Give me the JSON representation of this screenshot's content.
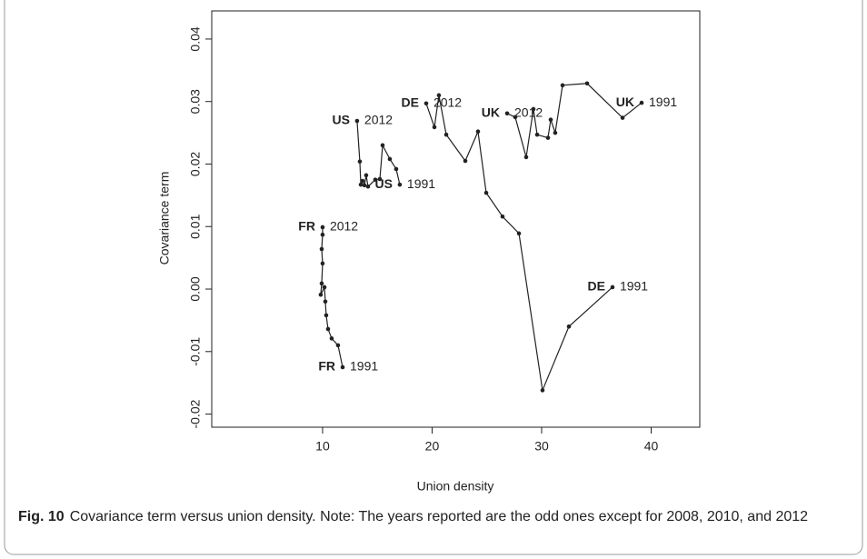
{
  "chart_data": {
    "type": "line",
    "x_label": "Union density",
    "y_label": "Covariance term",
    "caption_label": "Fig. 10",
    "caption": "Covariance term versus union density. Note: The years reported are the odd ones except for 2008, 2010, and 2012",
    "xlim": [
      -0.12,
      44.44
    ],
    "ylim": [
      -0.0221,
      0.0445
    ],
    "xticks": [
      10,
      20,
      30,
      40
    ],
    "yticks": [
      -0.02,
      -0.01,
      {
        "value": 0,
        "label": "0.00"
      },
      0.01,
      0.02,
      0.03,
      0.04
    ],
    "color": "#222222",
    "series": [
      {
        "name": "FR",
        "first_label": "2012",
        "last_label": "1991",
        "x": [
          10.0,
          10.0,
          9.92,
          10.0,
          9.92,
          9.83,
          10.17,
          10.25,
          10.33,
          10.5,
          10.83,
          11.41,
          11.83
        ],
        "y": [
          0.0099,
          0.0087,
          0.0064,
          0.0041,
          0.0009,
          -0.0009,
          0.0003,
          -0.002,
          -0.0042,
          -0.0064,
          -0.0079,
          -0.009,
          -0.0125
        ]
      },
      {
        "name": "US",
        "first_label": "2012",
        "last_label": "1991",
        "x": [
          13.15,
          13.4,
          13.49,
          13.65,
          13.82,
          13.98,
          14.15,
          14.81,
          15.23,
          15.48,
          16.14,
          16.72,
          17.05
        ],
        "y": [
          0.0269,
          0.0204,
          0.0167,
          0.0173,
          0.0166,
          0.0182,
          0.0164,
          0.0175,
          0.0176,
          0.023,
          0.0208,
          0.0192,
          0.0167
        ]
      },
      {
        "name": "DE",
        "first_label": "2012",
        "last_label": "1991",
        "x": [
          19.46,
          20.21,
          20.62,
          21.29,
          23.03,
          24.19,
          24.94,
          26.43,
          27.93,
          30.08,
          32.49,
          36.47
        ],
        "y": [
          0.0297,
          0.0259,
          0.031,
          0.0247,
          0.0205,
          0.0252,
          0.0154,
          0.0116,
          0.0089,
          -0.0162,
          -0.006,
          0.0003
        ]
      },
      {
        "name": "UK",
        "first_label": "2012",
        "last_label": "1991",
        "x": [
          26.85,
          27.59,
          28.59,
          29.25,
          29.59,
          30.58,
          30.83,
          31.24,
          31.91,
          34.15,
          37.39,
          39.13
        ],
        "y": [
          0.0281,
          0.0275,
          0.0211,
          0.0288,
          0.0247,
          0.0242,
          0.0271,
          0.025,
          0.0326,
          0.0329,
          0.0274,
          0.0298
        ]
      }
    ]
  }
}
